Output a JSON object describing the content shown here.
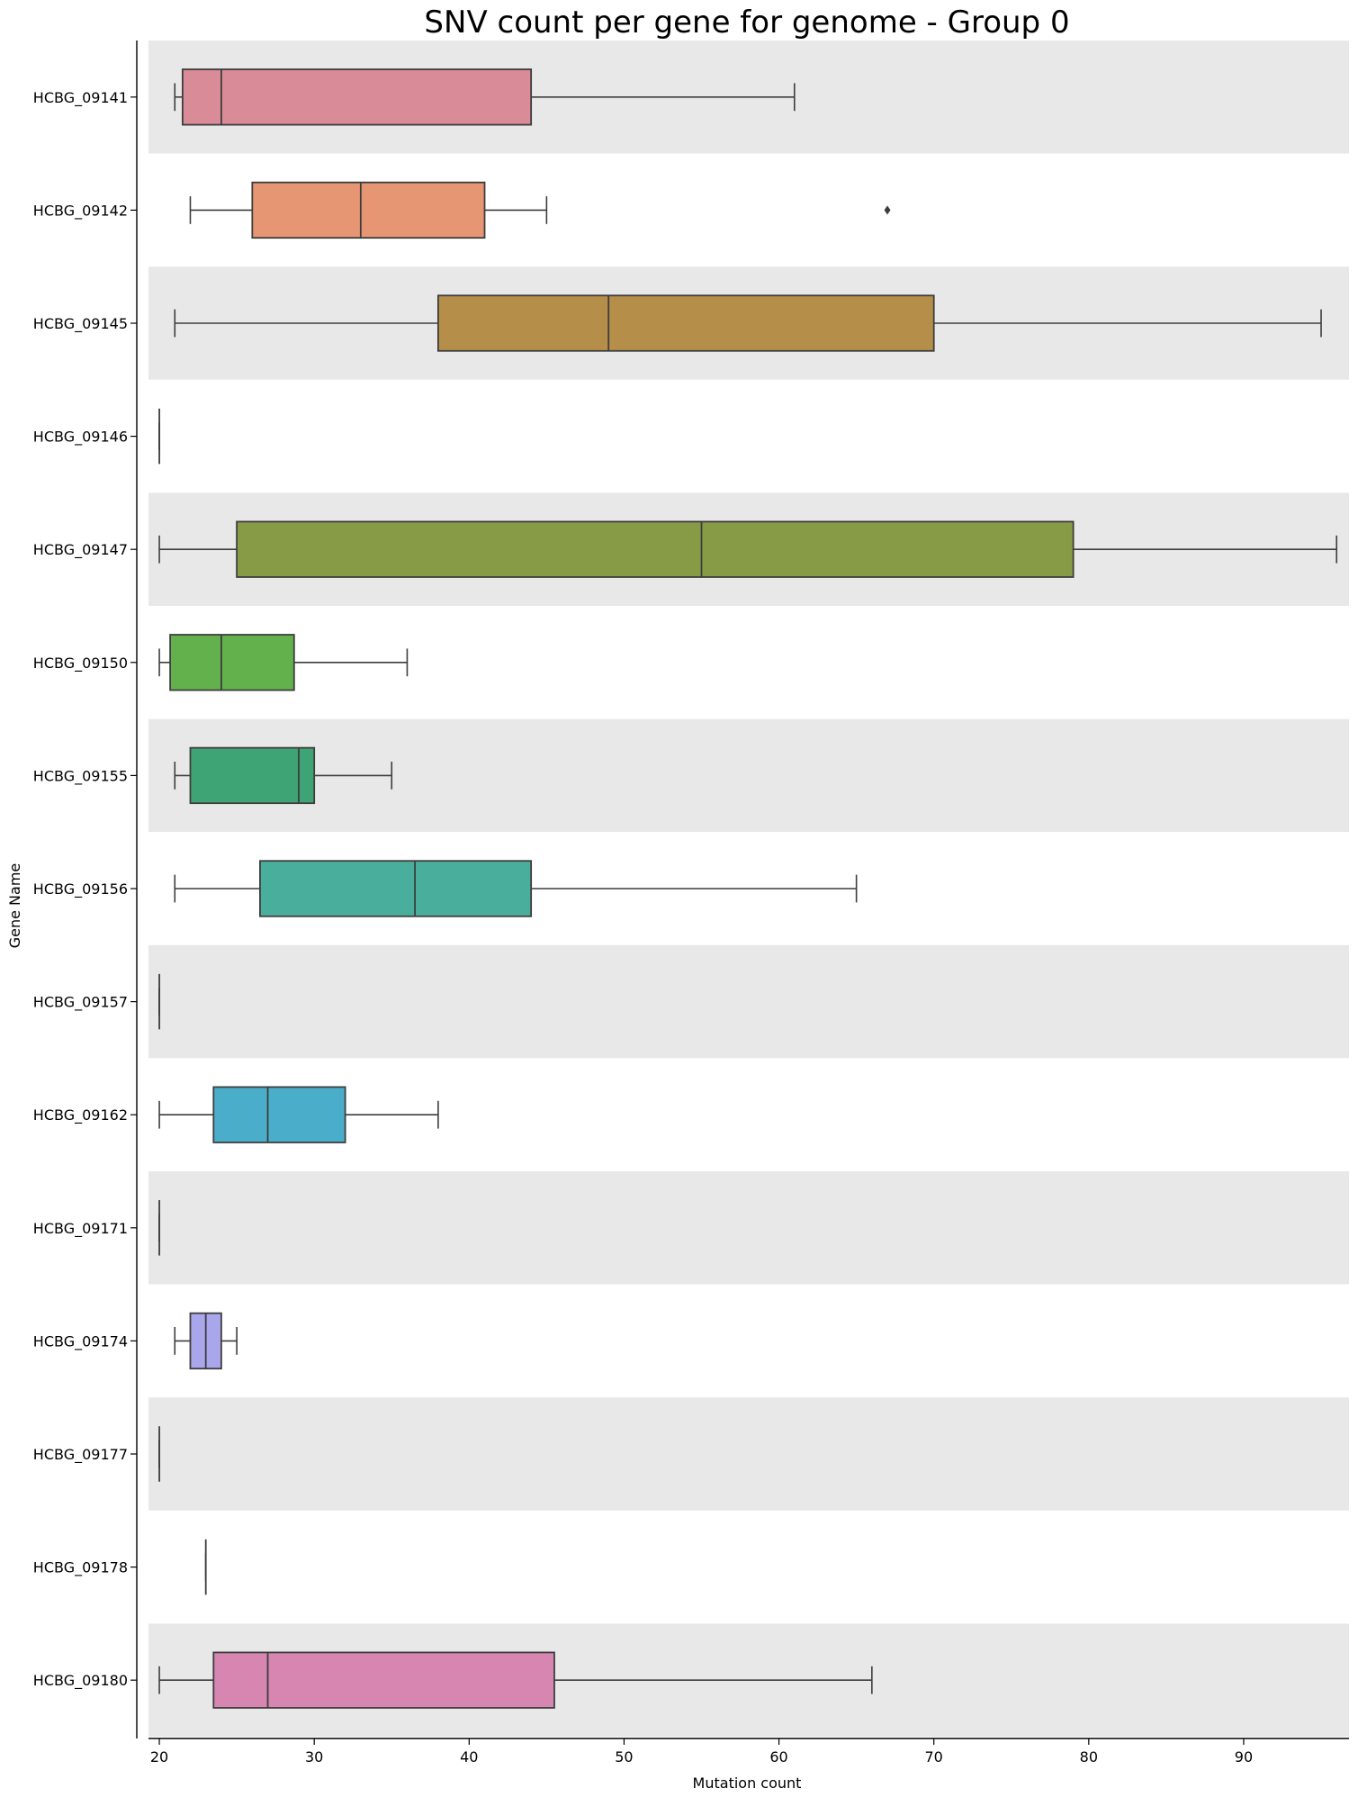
{
  "chart_data": {
    "type": "box",
    "orientation": "horizontal",
    "title": "SNV count per gene for genome - Group 0",
    "xlabel": "Mutation count",
    "ylabel": "Gene Name",
    "xlim": [
      19.3,
      96.8
    ],
    "xticks": [
      20,
      30,
      40,
      50,
      60,
      70,
      80,
      90
    ],
    "band_colors": [
      "#e8e8e8",
      "#ffffff"
    ],
    "line_color": "#3d3d3d",
    "grid": false,
    "legend": "none",
    "categories": [
      {
        "name": "HCBG_09141",
        "min": 21,
        "q1": 21.5,
        "median": 24,
        "q3": 44,
        "max": 61,
        "outliers": [],
        "color": "#d98b97"
      },
      {
        "name": "HCBG_09142",
        "min": 22,
        "q1": 26,
        "median": 33,
        "q3": 41,
        "max": 45,
        "outliers": [
          67
        ],
        "color": "#e69672"
      },
      {
        "name": "HCBG_09145",
        "min": 21,
        "q1": 38,
        "median": 49,
        "q3": 70,
        "max": 95,
        "outliers": [],
        "color": "#b58f4a"
      },
      {
        "name": "HCBG_09146",
        "min": 20,
        "q1": 20,
        "median": 20,
        "q3": 20,
        "max": 20,
        "outliers": [],
        "color": "#a39a44"
      },
      {
        "name": "HCBG_09147",
        "min": 20,
        "q1": 25,
        "median": 55,
        "q3": 79,
        "max": 96,
        "outliers": [],
        "color": "#879b47"
      },
      {
        "name": "HCBG_09150",
        "min": 20,
        "q1": 20.7,
        "median": 24,
        "q3": 28.7,
        "max": 36,
        "outliers": [],
        "color": "#62b14c"
      },
      {
        "name": "HCBG_09155",
        "min": 21,
        "q1": 22,
        "median": 29,
        "q3": 30,
        "max": 35,
        "outliers": [],
        "color": "#3fa475"
      },
      {
        "name": "HCBG_09156",
        "min": 21,
        "q1": 26.5,
        "median": 36.5,
        "q3": 44,
        "max": 65,
        "outliers": [],
        "color": "#4aae9c"
      },
      {
        "name": "HCBG_09157",
        "min": 20,
        "q1": 20,
        "median": 20,
        "q3": 20,
        "max": 20,
        "outliers": [],
        "color": "#45aab1"
      },
      {
        "name": "HCBG_09162",
        "min": 20,
        "q1": 23.5,
        "median": 27,
        "q3": 32,
        "max": 38,
        "outliers": [],
        "color": "#4aaecb"
      },
      {
        "name": "HCBG_09171",
        "min": 20,
        "q1": 20,
        "median": 20,
        "q3": 20,
        "max": 20,
        "outliers": [],
        "color": "#5aa4d8"
      },
      {
        "name": "HCBG_09174",
        "min": 21,
        "q1": 22,
        "median": 23,
        "q3": 24,
        "max": 25,
        "outliers": [],
        "color": "#aaa6ec"
      },
      {
        "name": "HCBG_09177",
        "min": 20,
        "q1": 20,
        "median": 20,
        "q3": 20,
        "max": 20,
        "outliers": [],
        "color": "#c48be6"
      },
      {
        "name": "HCBG_09178",
        "min": 23,
        "q1": 23,
        "median": 23,
        "q3": 23,
        "max": 23,
        "outliers": [],
        "color": "#d57fc8"
      },
      {
        "name": "HCBG_09180",
        "min": 20,
        "q1": 23.5,
        "median": 27,
        "q3": 45.5,
        "max": 66,
        "outliers": [],
        "color": "#d686b0"
      }
    ]
  }
}
